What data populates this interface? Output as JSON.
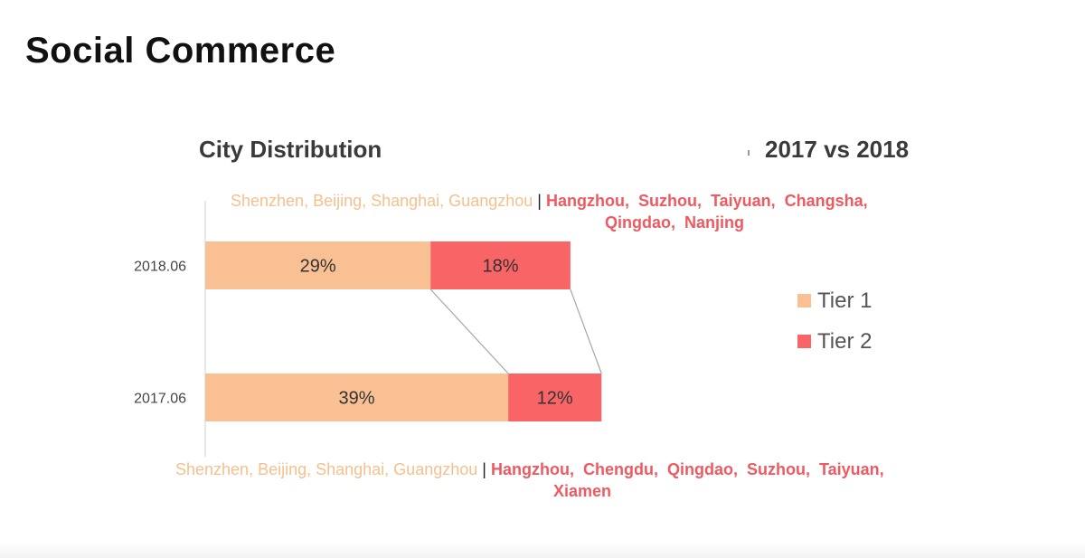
{
  "slide": {
    "title": "Social Commerce"
  },
  "chart_data": {
    "type": "bar",
    "orientation": "horizontal",
    "stacked": true,
    "title": "City Distribution",
    "subtitle": "2017 vs 2018",
    "categories": [
      "2018.06",
      "2017.06"
    ],
    "series": [
      {
        "name": "Tier 1",
        "values": [
          29,
          39
        ],
        "labels": [
          "29%",
          "39%"
        ],
        "color": "#f9c193"
      },
      {
        "name": "Tier 2",
        "values": [
          18,
          12
        ],
        "labels": [
          "18%",
          "12%"
        ],
        "color": "#f96567"
      }
    ],
    "xlim": [
      0,
      86
    ],
    "legend": {
      "position": "right"
    },
    "grid": false,
    "annotations": {
      "2018.06": {
        "tier1": "Shenzhen, Beijing, Shanghai, Guangzhou",
        "separator": "|",
        "tier2_line1": "Hangzhou,  Suzhou,  Taiyuan,  Changsha,",
        "tier2_line2": "Qingdao,  Nanjing"
      },
      "2017.06": {
        "tier1": "Shenzhen, Beijing, Shanghai, Guangzhou",
        "separator": "|",
        "tier2_line1": "Hangzhou,  Chengdu,  Qingdao,  Suzhou,  Taiyuan,",
        "tier2_line2": "Xiamen"
      }
    }
  }
}
